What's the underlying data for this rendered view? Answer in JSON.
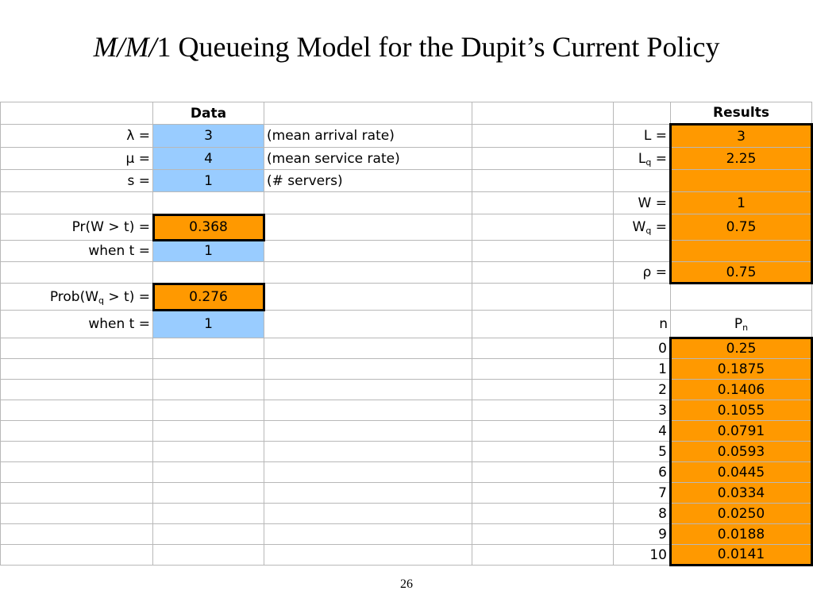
{
  "slide": {
    "title_italic": "M/M/",
    "title_rest": "1 Queueing Model for the Dupit’s Current Policy",
    "page_number": "26"
  },
  "headers": {
    "data": "Data",
    "results": "Results"
  },
  "inputs": {
    "lambda_label": "λ =",
    "lambda_value": "3",
    "lambda_note": "(mean arrival rate)",
    "mu_label": "μ =",
    "mu_value": "4",
    "mu_note": "(mean service rate)",
    "s_label": "s =",
    "s_value": "1",
    "s_note": "(# servers)"
  },
  "probabilities": {
    "pr_w_label": "Pr(W > t) =",
    "pr_w_value": "0.368",
    "when_t_label_1": "when t =",
    "when_t_value_1": "1",
    "prob_wq_label_pre": "Prob(W",
    "prob_wq_sub": "q",
    "prob_wq_label_post": " > t) =",
    "prob_wq_value": "0.276",
    "when_t_label_2": "when t =",
    "when_t_value_2": "1"
  },
  "results": {
    "L_label": "L =",
    "L_value": "3",
    "Lq_label_pre": "L",
    "Lq_sub": "q",
    "Lq_label_post": " =",
    "Lq_value": "2.25",
    "W_label": "W =",
    "W_value": "1",
    "Wq_label_pre": "W",
    "Wq_sub": "q",
    "Wq_label_post": " =",
    "Wq_value": "0.75",
    "rho_label": "ρ =",
    "rho_value": "0.75"
  },
  "pn": {
    "n_header": "n",
    "pn_header_pre": "P",
    "pn_header_sub": "n",
    "rows": [
      {
        "n": "0",
        "p": "0.25"
      },
      {
        "n": "1",
        "p": "0.1875"
      },
      {
        "n": "2",
        "p": "0.1406"
      },
      {
        "n": "3",
        "p": "0.1055"
      },
      {
        "n": "4",
        "p": "0.0791"
      },
      {
        "n": "5",
        "p": "0.0593"
      },
      {
        "n": "6",
        "p": "0.0445"
      },
      {
        "n": "7",
        "p": "0.0334"
      },
      {
        "n": "8",
        "p": "0.0250"
      },
      {
        "n": "9",
        "p": "0.0188"
      },
      {
        "n": "10",
        "p": "0.0141"
      }
    ]
  }
}
